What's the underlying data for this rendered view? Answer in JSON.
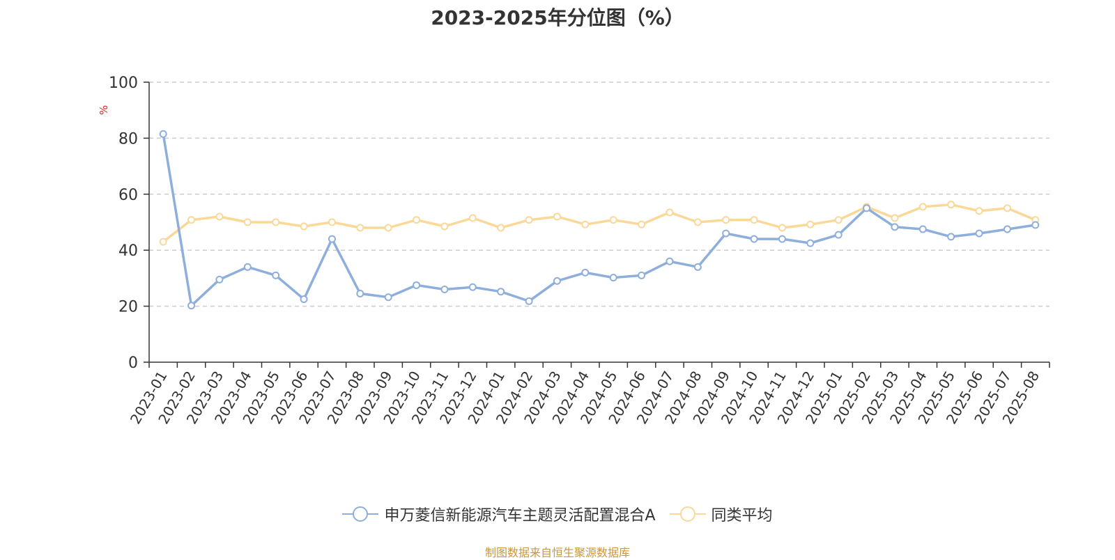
{
  "colors": {
    "series1": "#8eaedb",
    "series2": "#f9d898",
    "axis": "#333333",
    "grid": "#cccccc",
    "unit": "#e02020",
    "source": "#c8963c"
  },
  "source_note": "制图数据来自恒生聚源数据库",
  "chart_data": {
    "type": "line",
    "title": "2023-2025年分位图（%）",
    "ylabel": "%",
    "ylim": [
      0,
      100
    ],
    "yticks": [
      0,
      20,
      40,
      60,
      80,
      100
    ],
    "grid": true,
    "legend_position": "bottom",
    "categories": [
      "2023-01",
      "2023-02",
      "2023-03",
      "2023-04",
      "2023-05",
      "2023-06",
      "2023-07",
      "2023-08",
      "2023-09",
      "2023-10",
      "2023-11",
      "2023-12",
      "2024-01",
      "2024-02",
      "2024-03",
      "2024-04",
      "2024-05",
      "2024-06",
      "2024-07",
      "2024-08",
      "2024-09",
      "2024-10",
      "2024-11",
      "2024-12",
      "2025-01",
      "2025-02",
      "2025-03",
      "2025-04",
      "2025-05",
      "2025-06",
      "2025-07",
      "2025-08"
    ],
    "series": [
      {
        "name": "申万菱信新能源汽车主题灵活配置混合A",
        "values": [
          81.5,
          20.2,
          29.5,
          34.0,
          31.0,
          22.5,
          44.0,
          24.5,
          23.2,
          27.5,
          26.0,
          26.8,
          25.2,
          21.8,
          29.0,
          32.0,
          30.2,
          31.0,
          36.0,
          34.0,
          46.0,
          44.0,
          44.0,
          42.5,
          45.5,
          55.0,
          48.3,
          47.5,
          44.8,
          46.0,
          47.5,
          49.0
        ]
      },
      {
        "name": "同类平均",
        "values": [
          43.0,
          50.8,
          52.0,
          50.0,
          50.0,
          48.5,
          50.0,
          48.0,
          48.0,
          50.8,
          48.5,
          51.5,
          48.0,
          50.8,
          52.0,
          49.2,
          50.8,
          49.2,
          53.5,
          50.0,
          50.8,
          50.8,
          48.0,
          49.2,
          50.8,
          55.5,
          51.5,
          55.5,
          56.3,
          54.0,
          55.0,
          50.8
        ]
      }
    ]
  }
}
